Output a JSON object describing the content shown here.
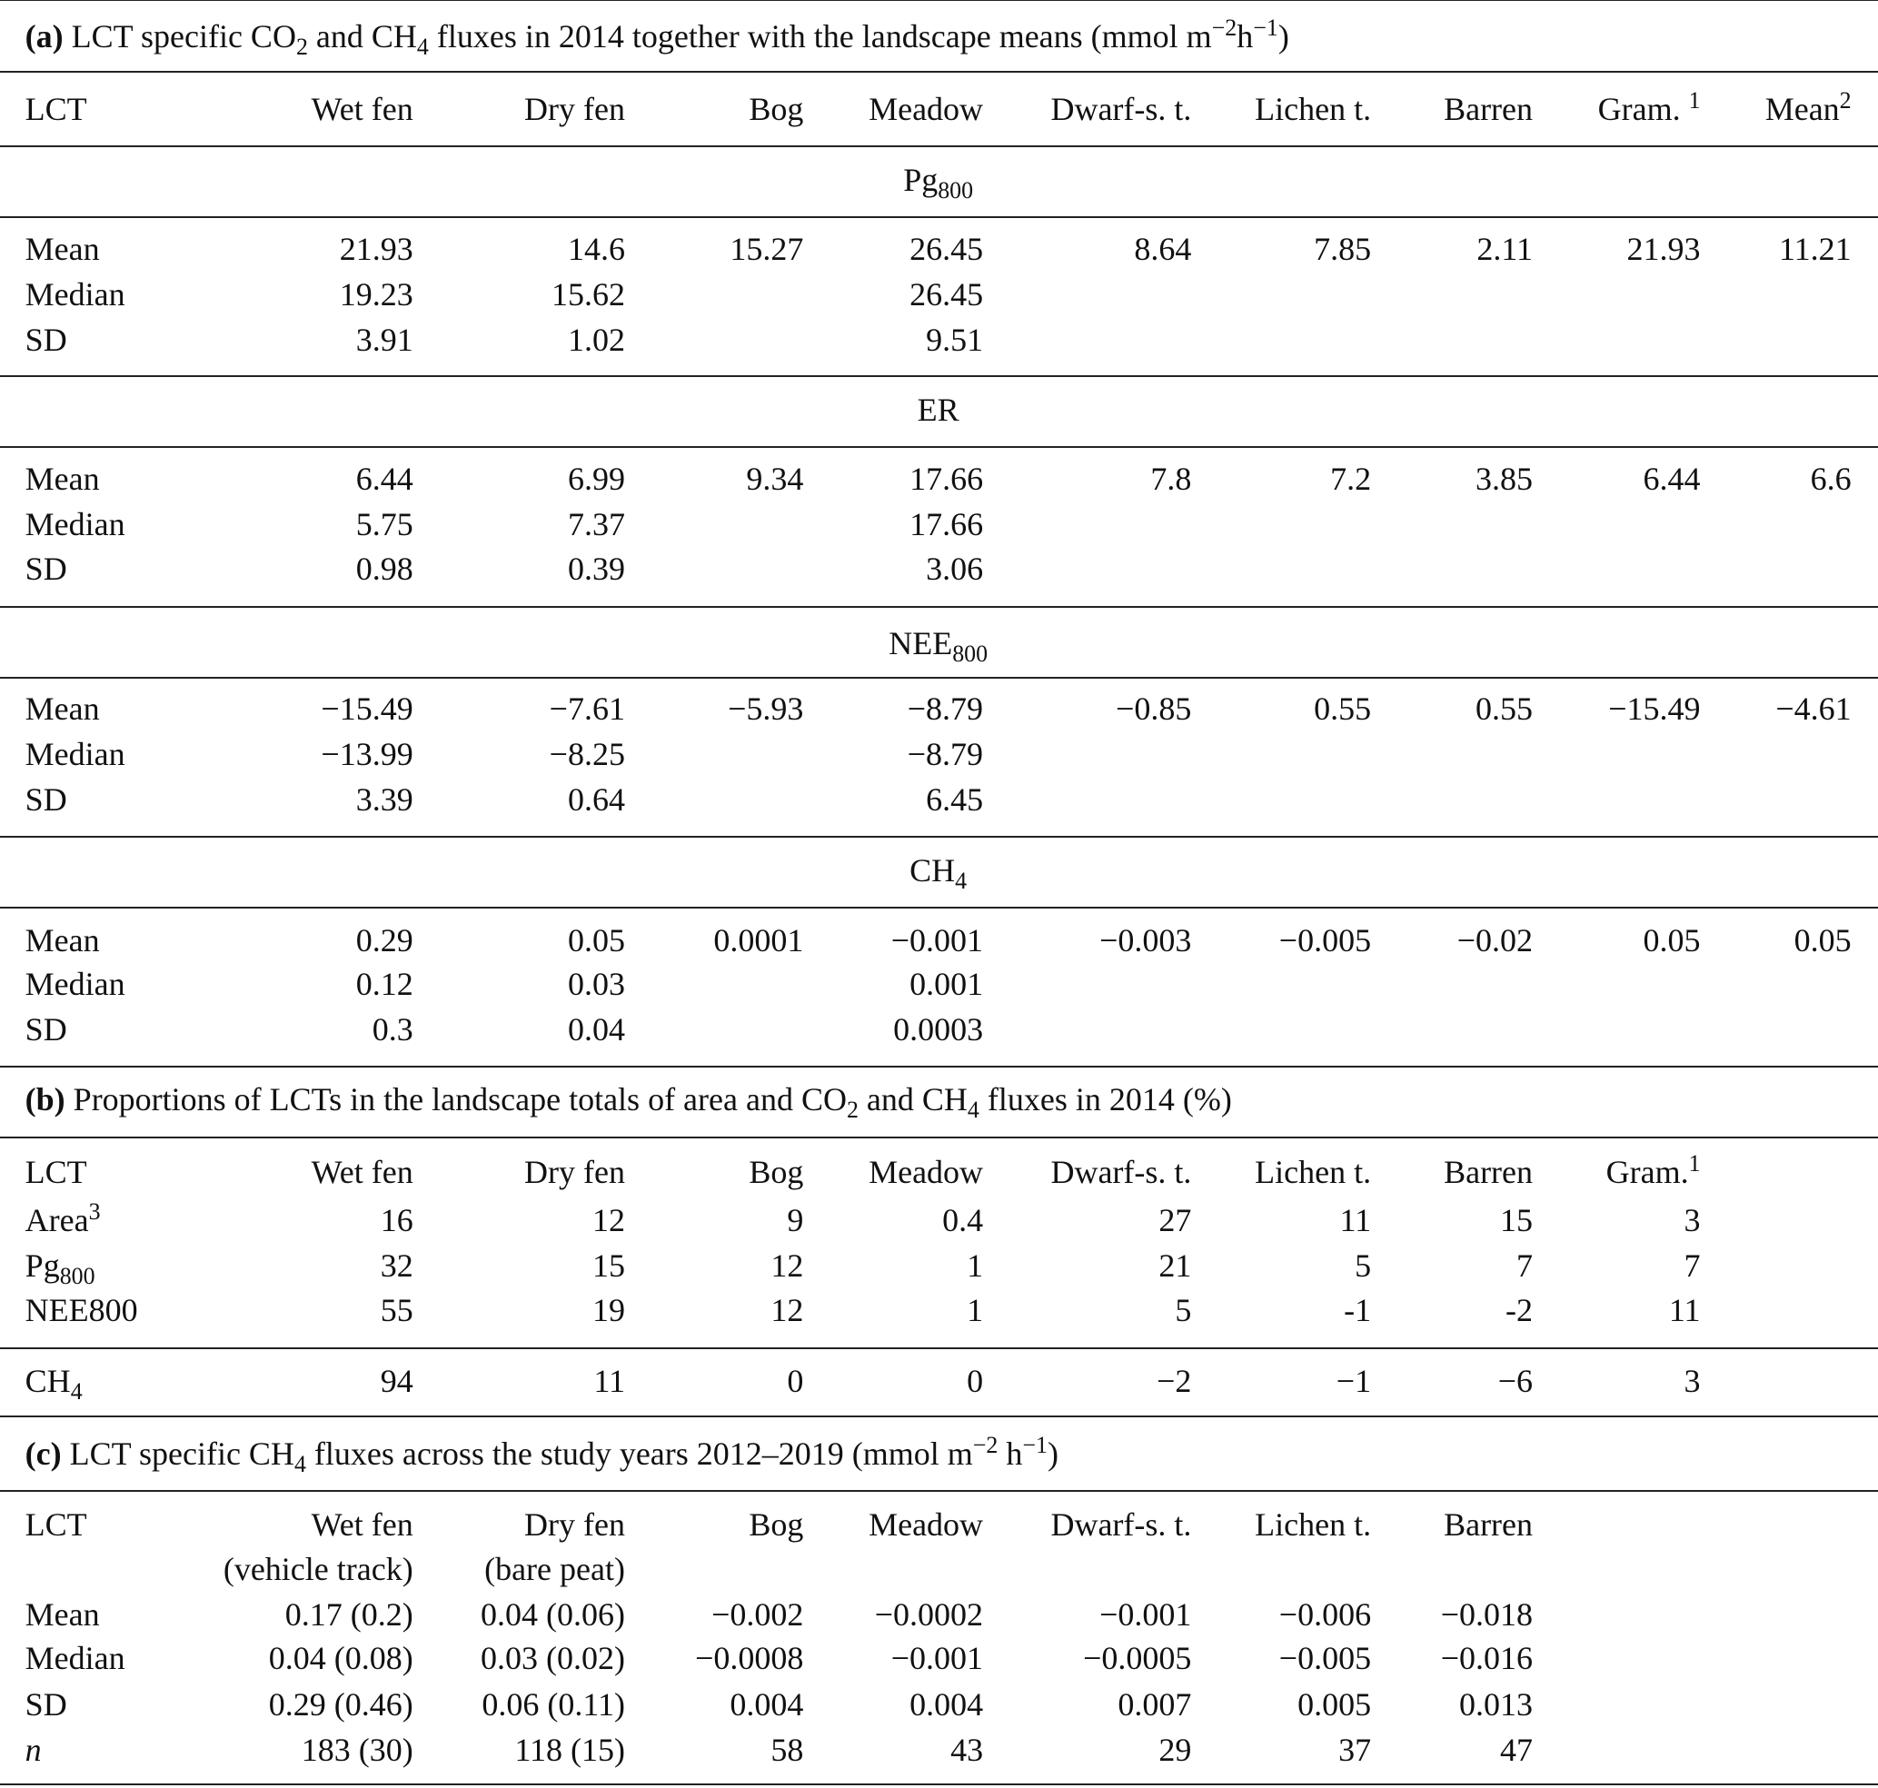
{
  "part_a": {
    "title": [
      {
        "b": "(a)"
      },
      {
        "t": " LCT specific CO"
      },
      {
        "sub": "2"
      },
      {
        "t": " and CH"
      },
      {
        "sub": "4"
      },
      {
        "t": " fluxes in 2014 together with the landscape means (mmol m"
      },
      {
        "sup": "−2"
      },
      {
        "t": "h"
      },
      {
        "sup": "−1"
      },
      {
        "t": ")"
      }
    ],
    "headers": [
      [
        {
          "t": "LCT"
        }
      ],
      [
        {
          "t": "Wet fen"
        }
      ],
      [
        {
          "t": "Dry fen"
        }
      ],
      [
        {
          "t": "Bog"
        }
      ],
      [
        {
          "t": "Meadow"
        }
      ],
      [
        {
          "t": "Dwarf-s. t."
        }
      ],
      [
        {
          "t": "Lichen t."
        }
      ],
      [
        {
          "t": "Barren"
        }
      ],
      [
        {
          "t": "Gram. "
        },
        {
          "sup": "1"
        }
      ],
      [
        {
          "t": "Mean"
        },
        {
          "sup": "2"
        }
      ]
    ],
    "sections": [
      {
        "label": [
          {
            "t": "Pg"
          },
          {
            "sub": "800"
          }
        ],
        "rows": [
          [
            "Mean",
            "21.93",
            "14.6",
            "15.27",
            "26.45",
            "8.64",
            "7.85",
            "2.11",
            "21.93",
            "11.21"
          ],
          [
            "Median",
            "19.23",
            "15.62",
            "",
            "26.45",
            "",
            "",
            "",
            "",
            ""
          ],
          [
            "SD",
            "3.91",
            "1.02",
            "",
            "9.51",
            "",
            "",
            "",
            "",
            ""
          ]
        ]
      },
      {
        "label": [
          {
            "t": "ER"
          }
        ],
        "rows": [
          [
            "Mean",
            "6.44",
            "6.99",
            "9.34",
            "17.66",
            "7.8",
            "7.2",
            "3.85",
            "6.44",
            "6.6"
          ],
          [
            "Median",
            "5.75",
            "7.37",
            "",
            "17.66",
            "",
            "",
            "",
            "",
            ""
          ],
          [
            "SD",
            "0.98",
            "0.39",
            "",
            "3.06",
            "",
            "",
            "",
            "",
            ""
          ]
        ]
      },
      {
        "label": [
          {
            "t": "NEE"
          },
          {
            "sub": "800"
          }
        ],
        "rows": [
          [
            "Mean",
            "−15.49",
            "−7.61",
            "−5.93",
            "−8.79",
            "−0.85",
            "0.55",
            "0.55",
            "−15.49",
            "−4.61"
          ],
          [
            "Median",
            "−13.99",
            "−8.25",
            "",
            "−8.79",
            "",
            "",
            "",
            "",
            ""
          ],
          [
            "SD",
            "3.39",
            "0.64",
            "",
            "6.45",
            "",
            "",
            "",
            "",
            ""
          ]
        ]
      },
      {
        "label": [
          {
            "t": "CH"
          },
          {
            "sub": "4"
          }
        ],
        "rows": [
          [
            "Mean",
            "0.29",
            "0.05",
            "0.0001",
            "−0.001",
            "−0.003",
            "−0.005",
            "−0.02",
            "0.05",
            "0.05"
          ],
          [
            "Median",
            "0.12",
            "0.03",
            "",
            "0.001",
            "",
            "",
            "",
            "",
            ""
          ],
          [
            "SD",
            "0.3",
            "0.04",
            "",
            "0.0003",
            "",
            "",
            "",
            "",
            ""
          ]
        ]
      }
    ]
  },
  "part_b": {
    "title": [
      {
        "b": "(b)"
      },
      {
        "t": " Proportions of LCTs in the landscape totals of area and CO"
      },
      {
        "sub": "2"
      },
      {
        "t": " and CH"
      },
      {
        "sub": "4"
      },
      {
        "t": " fluxes in 2014 (%)"
      }
    ],
    "headers": [
      [
        {
          "t": "LCT"
        }
      ],
      [
        {
          "t": "Wet fen"
        }
      ],
      [
        {
          "t": "Dry fen"
        }
      ],
      [
        {
          "t": "Bog"
        }
      ],
      [
        {
          "t": "Meadow"
        }
      ],
      [
        {
          "t": "Dwarf-s. t."
        }
      ],
      [
        {
          "t": "Lichen t."
        }
      ],
      [
        {
          "t": "Barren"
        }
      ],
      [
        {
          "t": "Gram."
        },
        {
          "sup": "1"
        }
      ]
    ],
    "rows": [
      [
        [
          {
            "t": "Area"
          },
          {
            "sup": "3"
          }
        ],
        "16",
        "12",
        "9",
        "0.4",
        "27",
        "11",
        "15",
        "3"
      ],
      [
        [
          {
            "t": "Pg"
          },
          {
            "sub": "800"
          }
        ],
        "32",
        "15",
        "12",
        "1",
        "21",
        "5",
        "7",
        "7"
      ],
      [
        [
          {
            "t": "NEE800"
          }
        ],
        "55",
        "19",
        "12",
        "1",
        "5",
        "-1",
        "-2",
        "11"
      ],
      [
        [
          {
            "t": "CH"
          },
          {
            "sub": "4"
          }
        ],
        "94",
        "11",
        "0",
        "0",
        "−2",
        "−1",
        "−6",
        "3"
      ]
    ]
  },
  "part_c": {
    "title": [
      {
        "b": "(c)"
      },
      {
        "t": " LCT specific CH"
      },
      {
        "sub": "4"
      },
      {
        "t": " fluxes across the study years 2012–2019 (mmol m"
      },
      {
        "sup": "−2"
      },
      {
        "t": " h"
      },
      {
        "sup": "−1"
      },
      {
        "t": ")"
      }
    ],
    "headers": [
      [
        {
          "t": "LCT"
        }
      ],
      [
        {
          "t": "Wet fen"
        }
      ],
      [
        {
          "t": "Dry fen"
        }
      ],
      [
        {
          "t": "Bog"
        }
      ],
      [
        {
          "t": "Meadow"
        }
      ],
      [
        {
          "t": "Dwarf-s. t."
        }
      ],
      [
        {
          "t": "Lichen t."
        }
      ],
      [
        {
          "t": "Barren"
        }
      ]
    ],
    "subheaders": [
      "",
      "(vehicle track)",
      "(bare peat)",
      "",
      "",
      "",
      "",
      ""
    ],
    "rows": [
      [
        [
          {
            "t": "Mean"
          }
        ],
        "0.17 (0.2)",
        "0.04 (0.06)",
        "−0.002",
        "−0.0002",
        "−0.001",
        "−0.006",
        "−0.018"
      ],
      [
        [
          {
            "t": "Median"
          }
        ],
        "0.04 (0.08)",
        "0.03 (0.02)",
        "−0.0008",
        "−0.001",
        "−0.0005",
        "−0.005",
        "−0.016"
      ],
      [
        [
          {
            "t": "SD"
          }
        ],
        "0.29 (0.46)",
        "0.06 (0.11)",
        "0.004",
        "0.004",
        "0.007",
        "0.005",
        "0.013"
      ],
      [
        [
          {
            "i": "n"
          }
        ],
        "183 (30)",
        "118 (15)",
        "58",
        "43",
        "29",
        "37",
        "47"
      ]
    ]
  }
}
